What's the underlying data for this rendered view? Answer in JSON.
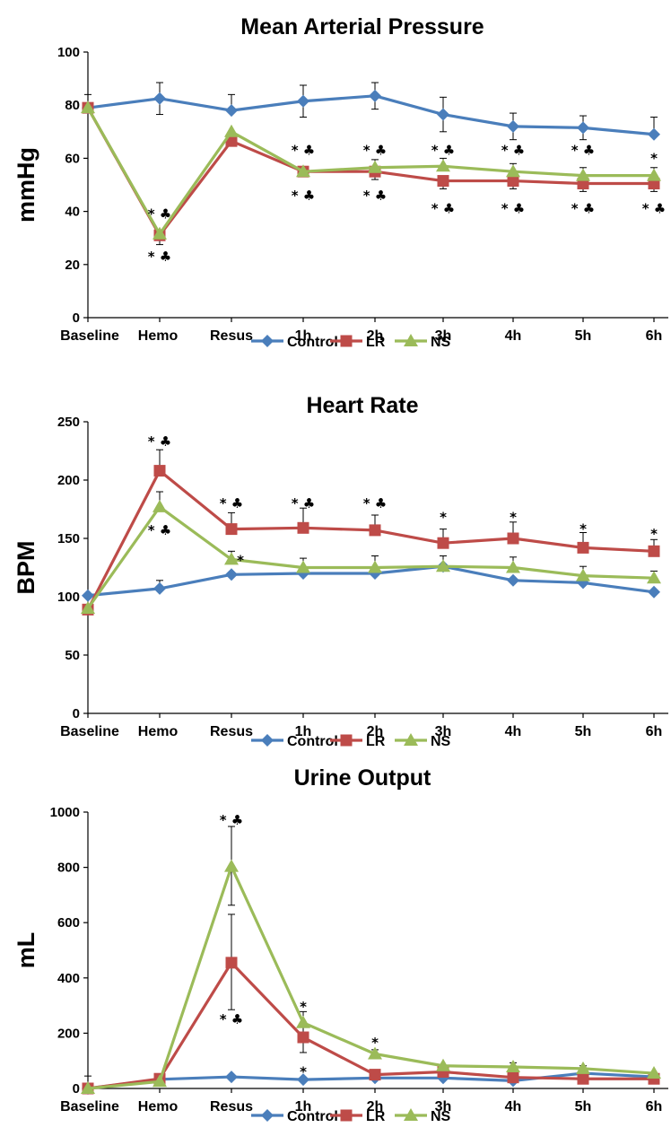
{
  "chart_data": [
    {
      "type": "line",
      "title": "Mean Arterial Pressure",
      "xlabel": "",
      "ylabel": "mmHg",
      "ylim": [
        0,
        100
      ],
      "yticks": [
        0,
        20,
        40,
        60,
        80,
        100
      ],
      "grid": false,
      "legend_position": "bottom",
      "categories": [
        "Baseline",
        "Hemo",
        "Resus",
        "1h",
        "2h",
        "3h",
        "4h",
        "5h",
        "6h"
      ],
      "series": [
        {
          "name": "Control",
          "color": "#4a7ebb",
          "marker": "diamond",
          "values": [
            79,
            82.5,
            78,
            81.5,
            83.5,
            76.5,
            72,
            71.5,
            69
          ],
          "err_up": [
            5,
            6,
            6,
            6,
            5,
            6.5,
            5,
            4.5,
            6.5
          ],
          "err_down": [
            0,
            6,
            0,
            6,
            5,
            6.5,
            5,
            4.5,
            0
          ]
        },
        {
          "name": "LR",
          "color": "#be4b48",
          "marker": "square",
          "values": [
            79,
            31,
            66.5,
            55,
            55,
            51.5,
            51.5,
            50.5,
            50.5
          ],
          "err_up": [
            0,
            0,
            0,
            0,
            0,
            0,
            0,
            0,
            0
          ],
          "err_down": [
            0,
            3.5,
            0,
            0,
            3,
            3,
            3,
            3,
            3
          ]
        },
        {
          "name": "NS",
          "color": "#9bbb59",
          "marker": "triangle",
          "values": [
            79,
            31.5,
            70,
            55,
            56.5,
            57,
            55,
            53.5,
            53.5
          ],
          "err_up": [
            0,
            0,
            0,
            0,
            3,
            3,
            3,
            3,
            3
          ],
          "err_down": [
            0,
            0,
            0,
            0,
            0,
            0,
            0,
            0,
            0
          ]
        }
      ],
      "annotations": [
        {
          "text": "* ♣",
          "category": "Hemo",
          "y": 39
        },
        {
          "text": "* ♣",
          "category": "Hemo",
          "y": 23
        },
        {
          "text": "* ♣",
          "category": "1h",
          "y": 63
        },
        {
          "text": "* ♣",
          "category": "1h",
          "y": 46
        },
        {
          "text": "* ♣",
          "category": "2h",
          "y": 63
        },
        {
          "text": "* ♣",
          "category": "2h",
          "y": 46
        },
        {
          "text": "* ♣",
          "category": "3h",
          "y": 63
        },
        {
          "text": "* ♣",
          "category": "3h",
          "y": 41
        },
        {
          "text": "* ♣",
          "category": "4h",
          "y": 63
        },
        {
          "text": "* ♣",
          "category": "4h",
          "y": 41
        },
        {
          "text": "* ♣",
          "category": "5h",
          "y": 63
        },
        {
          "text": "* ♣",
          "category": "5h",
          "y": 41
        },
        {
          "text": "*",
          "category": "6h",
          "y": 60
        },
        {
          "text": "* ♣",
          "category": "6h",
          "y": 41
        }
      ]
    },
    {
      "type": "line",
      "title": "Heart Rate",
      "xlabel": "",
      "ylabel": "BPM",
      "ylim": [
        0,
        250
      ],
      "yticks": [
        0,
        50,
        100,
        150,
        200,
        250
      ],
      "grid": false,
      "legend_position": "bottom",
      "categories": [
        "Baseline",
        "Hemo",
        "Resus",
        "1h",
        "2h",
        "3h",
        "4h",
        "5h",
        "6h"
      ],
      "series": [
        {
          "name": "Control",
          "color": "#4a7ebb",
          "marker": "diamond",
          "values": [
            101,
            107,
            119,
            120,
            120,
            126,
            114,
            112,
            104
          ],
          "err_up": [
            0,
            7,
            0,
            0,
            0,
            0,
            0,
            0,
            0
          ],
          "err_down": [
            0,
            0,
            0,
            0,
            0,
            0,
            0,
            0,
            0
          ]
        },
        {
          "name": "LR",
          "color": "#be4b48",
          "marker": "square",
          "values": [
            89,
            208,
            158,
            159,
            157,
            146,
            150,
            142,
            139
          ],
          "err_up": [
            0,
            18,
            14,
            17,
            13,
            12,
            14,
            13,
            10
          ],
          "err_down": [
            0,
            0,
            0,
            0,
            0,
            0,
            0,
            0,
            0
          ]
        },
        {
          "name": "NS",
          "color": "#9bbb59",
          "marker": "triangle",
          "values": [
            90,
            177,
            132,
            125,
            125,
            126,
            125,
            118,
            116
          ],
          "err_up": [
            0,
            13,
            7,
            8,
            10,
            9,
            9,
            8,
            6
          ],
          "err_down": [
            0,
            0,
            0,
            0,
            0,
            0,
            0,
            0,
            0
          ]
        }
      ],
      "annotations": [
        {
          "text": "* ♣",
          "category": "Hemo",
          "y": 233
        },
        {
          "text": "* ♣",
          "category": "Hemo",
          "y": 157
        },
        {
          "text": "* ♣",
          "category": "Resus",
          "y": 180
        },
        {
          "text": "*",
          "category": "Resus",
          "y": 131,
          "offset": 10
        },
        {
          "text": "* ♣",
          "category": "1h",
          "y": 180
        },
        {
          "text": "* ♣",
          "category": "2h",
          "y": 180
        },
        {
          "text": "*",
          "category": "3h",
          "y": 168
        },
        {
          "text": "*",
          "category": "4h",
          "y": 168
        },
        {
          "text": "*",
          "category": "5h",
          "y": 158
        },
        {
          "text": "*",
          "category": "6h",
          "y": 154
        }
      ]
    },
    {
      "type": "line",
      "title": "Urine Output",
      "xlabel": "",
      "ylabel": "mL",
      "ylim": [
        0,
        1000
      ],
      "yticks": [
        0,
        200,
        400,
        600,
        800,
        1000
      ],
      "grid": false,
      "legend_position": "bottom",
      "categories": [
        "Baseline",
        "Hemo",
        "Resus",
        "1h",
        "2h",
        "3h",
        "4h",
        "5h",
        "6h"
      ],
      "series": [
        {
          "name": "Control",
          "color": "#4a7ebb",
          "marker": "diamond",
          "values": [
            0,
            33,
            42,
            32,
            38,
            38,
            28,
            55,
            42
          ],
          "err_up": [
            45,
            0,
            0,
            0,
            0,
            0,
            0,
            0,
            0
          ],
          "err_down": [
            0,
            0,
            0,
            0,
            0,
            0,
            0,
            0,
            0
          ]
        },
        {
          "name": "LR",
          "color": "#be4b48",
          "marker": "square",
          "values": [
            0,
            35,
            455,
            185,
            50,
            60,
            40,
            35,
            35
          ],
          "err_up": [
            0,
            0,
            175,
            50,
            0,
            0,
            0,
            0,
            0
          ],
          "err_down": [
            0,
            0,
            170,
            55,
            0,
            0,
            0,
            0,
            0
          ]
        },
        {
          "name": "NS",
          "color": "#9bbb59",
          "marker": "triangle",
          "values": [
            0,
            25,
            803,
            238,
            125,
            82,
            78,
            72,
            55
          ],
          "err_up": [
            0,
            0,
            145,
            40,
            15,
            0,
            15,
            10,
            0
          ],
          "err_down": [
            0,
            0,
            140,
            0,
            0,
            0,
            0,
            0,
            0
          ]
        }
      ],
      "annotations": [
        {
          "text": "* ♣",
          "category": "Resus",
          "y": 970
        },
        {
          "text": "* ♣",
          "category": "Resus",
          "y": 250
        },
        {
          "text": "*",
          "category": "1h",
          "y": 295
        },
        {
          "text": "*",
          "category": "1h",
          "y": 60
        },
        {
          "text": "*",
          "category": "2h",
          "y": 165
        }
      ]
    }
  ]
}
